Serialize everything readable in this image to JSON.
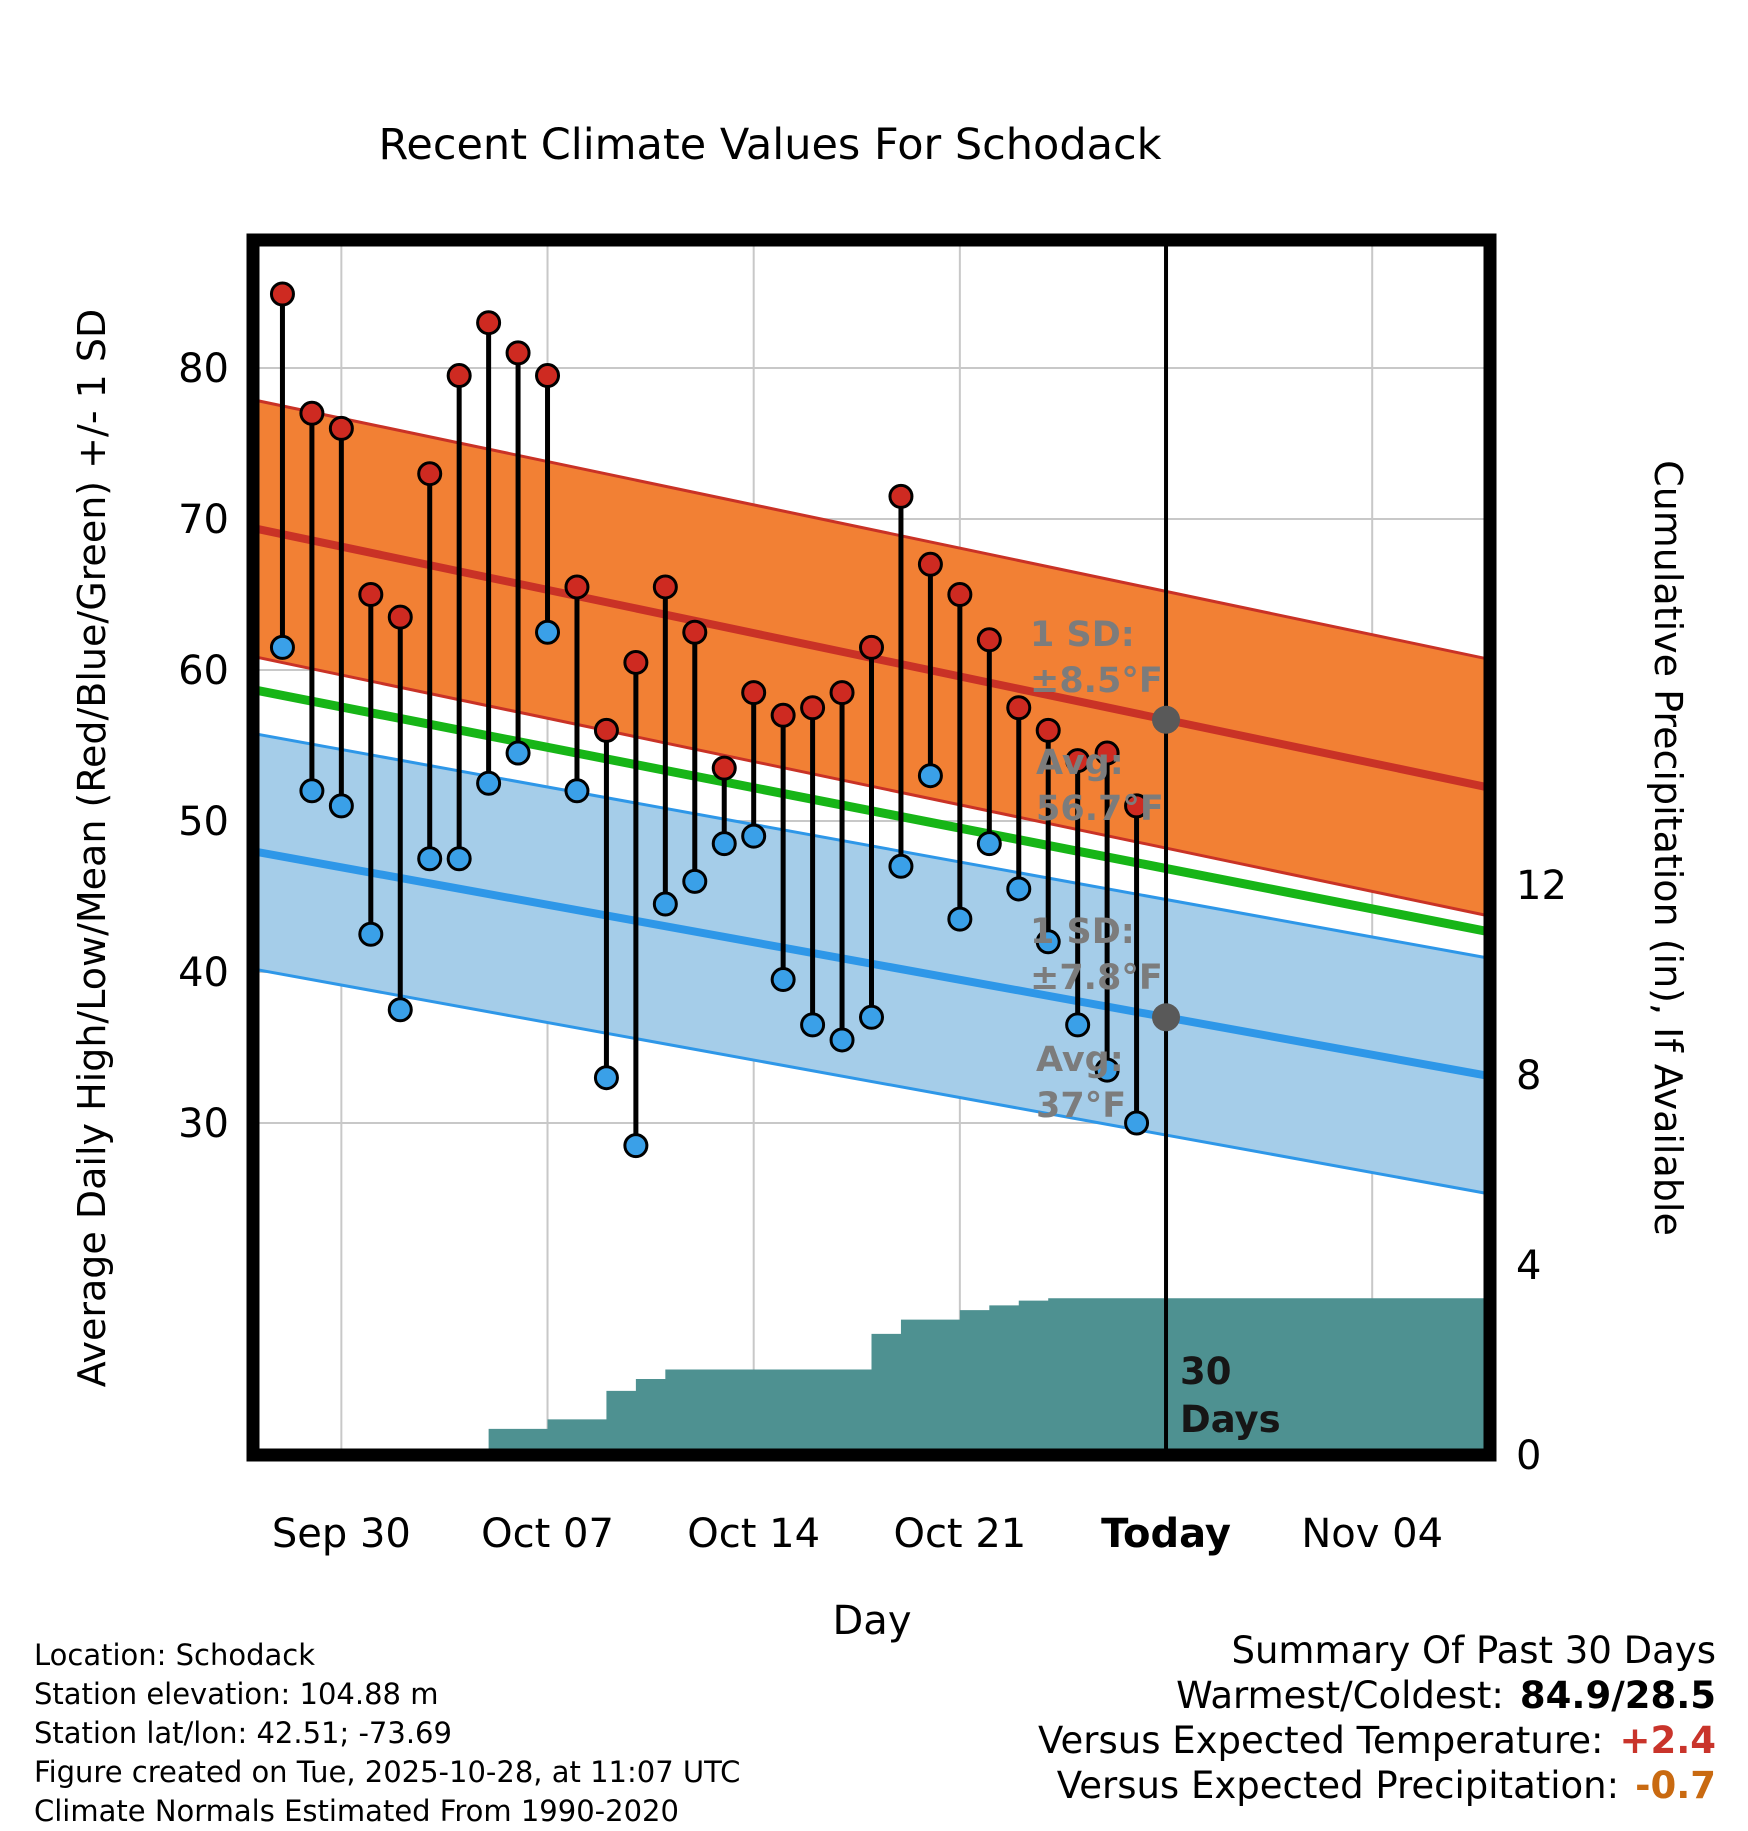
{
  "title": "Recent Climate Values For Schodack",
  "chart_data": {
    "type": "line",
    "title": "Recent Climate Values For Schodack",
    "xlabel": "Day",
    "ylabel_left": "Average Daily High/Low/Mean (Red/Blue/Green) +/- 1 SD",
    "ylabel_right": "Cumulative Precipitation (in), If Available",
    "x_axis": {
      "range_days": [
        0,
        42
      ],
      "day0_date": "Sep 27",
      "ticks": [
        {
          "day": 3,
          "label": "Sep 30",
          "bold": false
        },
        {
          "day": 10,
          "label": "Oct 07",
          "bold": false
        },
        {
          "day": 17,
          "label": "Oct 14",
          "bold": false
        },
        {
          "day": 24,
          "label": "Oct 21",
          "bold": false
        },
        {
          "day": 31,
          "label": "Today",
          "bold": true
        },
        {
          "day": 38,
          "label": "Nov 04",
          "bold": false
        }
      ]
    },
    "temp_axis": {
      "range": [
        8,
        88.5
      ],
      "ticks": [
        {
          "v": 30,
          "label": "30"
        },
        {
          "v": 40,
          "label": "40"
        },
        {
          "v": 50,
          "label": "50"
        },
        {
          "v": 60,
          "label": "60"
        },
        {
          "v": 70,
          "label": "70"
        },
        {
          "v": 80,
          "label": "80"
        }
      ]
    },
    "precip_axis": {
      "range": [
        0,
        25.6
      ],
      "ticks": [
        {
          "v": 0,
          "label": "0"
        },
        {
          "v": 4,
          "label": "4"
        },
        {
          "v": 8,
          "label": "8"
        },
        {
          "v": 12,
          "label": "12"
        }
      ]
    },
    "today_day": 31,
    "normals": {
      "high": {
        "mean_start": 69.4,
        "mean_end": 52.2,
        "sd": 8.5
      },
      "mean": {
        "mean_start": 58.7,
        "mean_end": 42.65
      },
      "low": {
        "mean_start": 48.0,
        "mean_end": 33.1,
        "sd": 7.8
      }
    },
    "observations": [
      {
        "day": 1,
        "date": "Sep 28",
        "high": 84.9,
        "low": 61.5
      },
      {
        "day": 2,
        "date": "Sep 29",
        "high": 77.0,
        "low": 52.0
      },
      {
        "day": 3,
        "date": "Sep 30",
        "high": 76.0,
        "low": 51.0
      },
      {
        "day": 4,
        "date": "Oct 01",
        "high": 65.0,
        "low": 42.5
      },
      {
        "day": 5,
        "date": "Oct 02",
        "high": 63.5,
        "low": 37.5
      },
      {
        "day": 6,
        "date": "Oct 03",
        "high": 73.0,
        "low": 47.5
      },
      {
        "day": 7,
        "date": "Oct 04",
        "high": 79.5,
        "low": 47.5
      },
      {
        "day": 8,
        "date": "Oct 05",
        "high": 83.0,
        "low": 52.5
      },
      {
        "day": 9,
        "date": "Oct 06",
        "high": 81.0,
        "low": 54.5
      },
      {
        "day": 10,
        "date": "Oct 07",
        "high": 79.5,
        "low": 62.5
      },
      {
        "day": 11,
        "date": "Oct 08",
        "high": 65.5,
        "low": 52.0
      },
      {
        "day": 12,
        "date": "Oct 09",
        "high": 56.0,
        "low": 33.0
      },
      {
        "day": 13,
        "date": "Oct 10",
        "high": 60.5,
        "low": 28.5
      },
      {
        "day": 14,
        "date": "Oct 11",
        "high": 65.5,
        "low": 44.5
      },
      {
        "day": 15,
        "date": "Oct 12",
        "high": 62.5,
        "low": 46.0
      },
      {
        "day": 16,
        "date": "Oct 13",
        "high": 53.5,
        "low": 48.5
      },
      {
        "day": 17,
        "date": "Oct 14",
        "high": 58.5,
        "low": 49.0
      },
      {
        "day": 18,
        "date": "Oct 15",
        "high": 57.0,
        "low": 39.5
      },
      {
        "day": 19,
        "date": "Oct 16",
        "high": 57.5,
        "low": 36.5
      },
      {
        "day": 20,
        "date": "Oct 17",
        "high": 58.5,
        "low": 35.5
      },
      {
        "day": 21,
        "date": "Oct 18",
        "high": 61.5,
        "low": 37.0
      },
      {
        "day": 22,
        "date": "Oct 19",
        "high": 71.5,
        "low": 47.0
      },
      {
        "day": 23,
        "date": "Oct 20",
        "high": 67.0,
        "low": 53.0
      },
      {
        "day": 24,
        "date": "Oct 21",
        "high": 65.0,
        "low": 43.5
      },
      {
        "day": 25,
        "date": "Oct 22",
        "high": 62.0,
        "low": 48.5
      },
      {
        "day": 26,
        "date": "Oct 23",
        "high": 57.5,
        "low": 45.5
      },
      {
        "day": 27,
        "date": "Oct 24",
        "high": 56.0,
        "low": 42.0
      },
      {
        "day": 28,
        "date": "Oct 25",
        "high": 54.0,
        "low": 36.5
      },
      {
        "day": 29,
        "date": "Oct 26",
        "high": 54.5,
        "low": 33.5
      },
      {
        "day": 30,
        "date": "Oct 27",
        "high": 51.0,
        "low": 30.0
      }
    ],
    "precipitation_steps": [
      {
        "day": 8,
        "cum": 0.55
      },
      {
        "day": 10,
        "cum": 0.75
      },
      {
        "day": 12,
        "cum": 1.35
      },
      {
        "day": 13,
        "cum": 1.6
      },
      {
        "day": 14,
        "cum": 1.8
      },
      {
        "day": 21,
        "cum": 2.55
      },
      {
        "day": 22,
        "cum": 2.85
      },
      {
        "day": 24,
        "cum": 3.05
      },
      {
        "day": 25,
        "cum": 3.15
      },
      {
        "day": 26,
        "cum": 3.25
      },
      {
        "day": 27,
        "cum": 3.3
      },
      {
        "day": 42,
        "cum": 3.3
      }
    ]
  },
  "annotations": {
    "high_sd": {
      "line1": "1 SD:",
      "line2": "±8.5°F"
    },
    "high_avg": {
      "line1": "Avg:",
      "line2": "56.7°F"
    },
    "low_sd": {
      "line1": "1 SD:",
      "line2": "±7.8°F"
    },
    "low_avg": {
      "line1": "Avg:",
      "line2": "37°F"
    },
    "window": {
      "line1": "30",
      "line2": "Days"
    }
  },
  "footer": {
    "lines": [
      "Location: Schodack",
      "Station elevation: 104.88 m",
      "Station lat/lon: 42.51; -73.69",
      "Figure created on Tue, 2025-10-28, at 11:07 UTC",
      "Climate Normals Estimated From 1990-2020"
    ]
  },
  "summary": {
    "title": "Summary Of Past 30 Days",
    "rows": [
      {
        "label": "Warmest/Coldest:",
        "value": "84.9/28.5",
        "color": "#000000"
      },
      {
        "label": "Versus Expected Temperature:",
        "value": "+2.4",
        "color": "#C9342B"
      },
      {
        "label": "Versus Expected Precipitation:",
        "value": "-0.7",
        "color": "#C96A11"
      }
    ]
  },
  "colors": {
    "high_band": "#F28034",
    "high_line": "#C93226",
    "high_dot": "#CE2A21",
    "low_band": "#A5CDE9",
    "low_line": "#2E97E8",
    "low_dot": "#3AA0E8",
    "mean_line": "#17B517",
    "precip_fill": "#4E9191",
    "grid": "#C8C8C8",
    "stem": "#000000",
    "today_line": "#000000",
    "border": "#000000",
    "annotation_text": "#7C7C7C",
    "marker_dot": "#595959"
  }
}
